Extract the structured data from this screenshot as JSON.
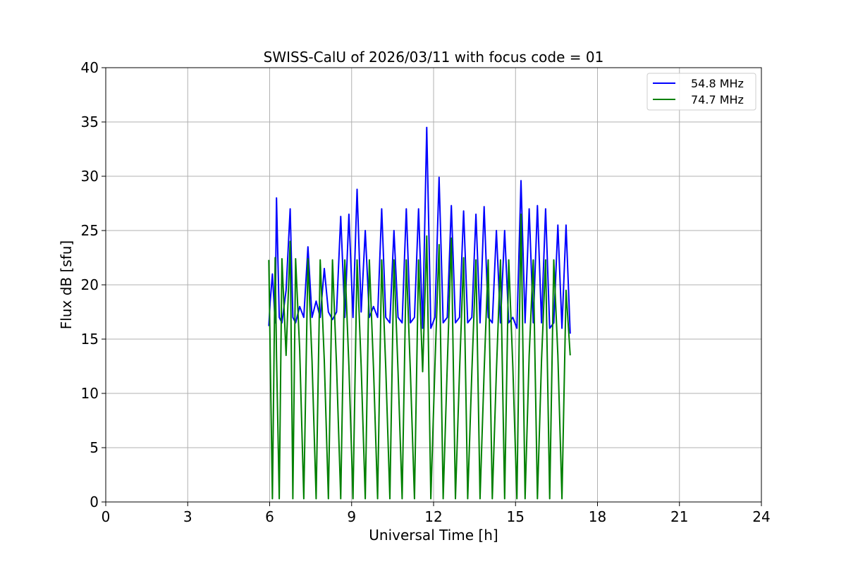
{
  "chart_data": {
    "type": "line",
    "title": "SWISS-CalU of 2026/03/11 with focus code = 01",
    "xlabel": "Universal Time [h]",
    "ylabel": "Flux dB [sfu]",
    "xlim": [
      0,
      24
    ],
    "ylim": [
      0,
      40
    ],
    "xticks": [
      0,
      3,
      6,
      9,
      12,
      15,
      18,
      21,
      24
    ],
    "yticks": [
      0,
      5,
      10,
      15,
      20,
      25,
      30,
      35,
      40
    ],
    "grid": true,
    "legend_position": "top-right",
    "series": [
      {
        "name": "54.8 MHz",
        "color": "#0000ff",
        "x": [
          5.97,
          6.02,
          6.1,
          6.2,
          6.25,
          6.35,
          6.45,
          6.6,
          6.75,
          6.85,
          6.95,
          7.1,
          7.25,
          7.4,
          7.55,
          7.7,
          7.85,
          8.0,
          8.15,
          8.3,
          8.45,
          8.6,
          8.75,
          8.9,
          9.05,
          9.2,
          9.35,
          9.5,
          9.65,
          9.8,
          9.95,
          10.1,
          10.25,
          10.4,
          10.55,
          10.7,
          10.85,
          11.0,
          11.15,
          11.3,
          11.45,
          11.6,
          11.75,
          11.9,
          12.05,
          12.2,
          12.35,
          12.5,
          12.65,
          12.8,
          12.95,
          13.1,
          13.25,
          13.4,
          13.55,
          13.7,
          13.85,
          14.0,
          14.15,
          14.3,
          14.45,
          14.6,
          14.75,
          14.9,
          15.05,
          15.2,
          15.35,
          15.5,
          15.65,
          15.8,
          15.95,
          16.1,
          16.25,
          16.4,
          16.55,
          16.7,
          16.85,
          17.0
        ],
        "y": [
          16.2,
          18.5,
          21.0,
          16.5,
          28.0,
          17.0,
          16.5,
          19.5,
          27.0,
          17.0,
          16.5,
          18.0,
          17.0,
          23.5,
          17.0,
          18.5,
          17.0,
          21.5,
          17.5,
          16.8,
          17.5,
          26.3,
          17.0,
          26.5,
          17.0,
          28.8,
          17.5,
          25.0,
          17.0,
          18.0,
          17.0,
          27.0,
          17.0,
          16.5,
          25.0,
          17.0,
          16.5,
          27.0,
          16.5,
          17.0,
          27.0,
          16.0,
          34.5,
          16.0,
          17.0,
          29.9,
          16.5,
          17.0,
          27.3,
          16.5,
          17.0,
          26.8,
          16.5,
          17.0,
          26.5,
          16.5,
          27.2,
          17.0,
          16.5,
          25.0,
          16.5,
          25.0,
          16.5,
          17.0,
          16.0,
          29.6,
          16.5,
          27.0,
          16.5,
          27.3,
          16.5,
          27.0,
          16.0,
          16.5,
          25.5,
          16.0,
          25.5,
          15.5
        ]
      },
      {
        "name": "74.7 MHz",
        "color": "#008000",
        "x": [
          5.97,
          6.02,
          6.1,
          6.2,
          6.25,
          6.35,
          6.45,
          6.6,
          6.75,
          6.85,
          6.95,
          7.1,
          7.25,
          7.4,
          7.55,
          7.7,
          7.85,
          8.0,
          8.15,
          8.3,
          8.45,
          8.6,
          8.75,
          8.9,
          9.05,
          9.2,
          9.35,
          9.5,
          9.65,
          9.8,
          9.95,
          10.1,
          10.25,
          10.4,
          10.55,
          10.7,
          10.85,
          11.0,
          11.15,
          11.3,
          11.45,
          11.6,
          11.75,
          11.9,
          12.05,
          12.2,
          12.35,
          12.5,
          12.65,
          12.8,
          12.95,
          13.1,
          13.25,
          13.4,
          13.55,
          13.7,
          13.85,
          14.0,
          14.15,
          14.3,
          14.45,
          14.6,
          14.75,
          14.9,
          15.05,
          15.2,
          15.35,
          15.5,
          15.65,
          15.8,
          15.95,
          16.1,
          16.25,
          16.4,
          16.55,
          16.7,
          16.85,
          17.0
        ],
        "y": [
          22.3,
          13.5,
          0.3,
          22.5,
          13.5,
          0.3,
          22.4,
          13.5,
          24.0,
          0.3,
          22.4,
          14.0,
          0.3,
          22.4,
          13.0,
          0.3,
          22.3,
          13.0,
          0.3,
          22.3,
          12.5,
          0.3,
          22.3,
          12.5,
          0.3,
          22.3,
          12.5,
          0.3,
          22.3,
          12.3,
          0.3,
          22.3,
          12.3,
          0.3,
          22.3,
          12.0,
          0.3,
          22.3,
          12.0,
          0.3,
          22.3,
          12.0,
          24.5,
          0.3,
          12.5,
          23.7,
          0.3,
          12.5,
          24.3,
          0.3,
          12.0,
          22.5,
          0.3,
          12.0,
          22.3,
          0.3,
          12.0,
          22.3,
          0.3,
          12.0,
          22.3,
          0.3,
          22.3,
          12.5,
          0.3,
          26.5,
          0.3,
          13.5,
          22.3,
          0.3,
          13.0,
          22.3,
          0.3,
          22.3,
          13.5,
          0.3,
          19.5,
          13.5
        ]
      }
    ]
  }
}
